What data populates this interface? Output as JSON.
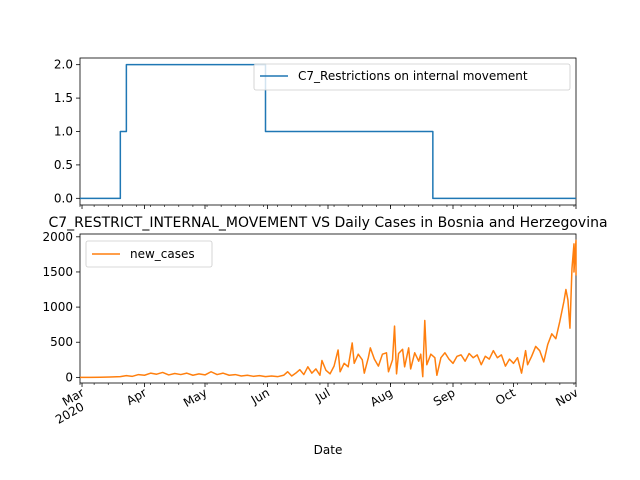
{
  "chart_data": [
    {
      "type": "line",
      "title": "",
      "xlabel": "",
      "ylabel": "",
      "ylim": [
        -0.1,
        2.1
      ],
      "yticks": [
        "0.0",
        "0.5",
        "1.0",
        "1.5",
        "2.0"
      ],
      "ytick_values": [
        0.0,
        0.5,
        1.0,
        1.5,
        2.0
      ],
      "legend_position": "top-right",
      "series": [
        {
          "name": "C7_Restrictions on internal movement",
          "color": "#1f77b4",
          "points": [
            [
              "2020-02-29",
              0
            ],
            [
              "2020-03-20",
              0
            ],
            [
              "2020-03-20",
              1
            ],
            [
              "2020-03-23",
              1
            ],
            [
              "2020-03-23",
              2
            ],
            [
              "2020-05-31",
              2
            ],
            [
              "2020-05-31",
              1
            ],
            [
              "2020-08-22",
              1
            ],
            [
              "2020-08-22",
              0
            ],
            [
              "2020-11-01",
              0
            ]
          ]
        }
      ]
    },
    {
      "type": "line",
      "title": "C7_RESTRICT_INTERNAL_MOVEMENT VS Daily Cases in Bosnia and Herzegovina",
      "xlabel": "Date",
      "ylabel": "",
      "ylim": [
        -80,
        2040
      ],
      "yticks": [
        "0",
        "500",
        "1000",
        "1500",
        "2000"
      ],
      "ytick_values": [
        0,
        500,
        1000,
        1500,
        2000
      ],
      "xtick_labels": [
        {
          "date": "2020-03-01",
          "label": "Mar",
          "sub": "2020"
        },
        {
          "date": "2020-04-01",
          "label": "Apr",
          "sub": ""
        },
        {
          "date": "2020-05-01",
          "label": "May",
          "sub": ""
        },
        {
          "date": "2020-06-01",
          "label": "Jun",
          "sub": ""
        },
        {
          "date": "2020-07-01",
          "label": "Jul",
          "sub": ""
        },
        {
          "date": "2020-08-01",
          "label": "Aug",
          "sub": ""
        },
        {
          "date": "2020-09-01",
          "label": "Sep",
          "sub": ""
        },
        {
          "date": "2020-10-01",
          "label": "Oct",
          "sub": ""
        },
        {
          "date": "2020-11-01",
          "label": "Nov",
          "sub": ""
        }
      ],
      "xlim": [
        "2020-02-29",
        "2020-11-01"
      ],
      "legend_position": "top-left",
      "series": [
        {
          "name": "new_cases",
          "color": "#ff7f0e",
          "points": [
            [
              "2020-02-29",
              0
            ],
            [
              "2020-03-05",
              0
            ],
            [
              "2020-03-10",
              2
            ],
            [
              "2020-03-15",
              5
            ],
            [
              "2020-03-20",
              10
            ],
            [
              "2020-03-23",
              25
            ],
            [
              "2020-03-26",
              15
            ],
            [
              "2020-03-29",
              40
            ],
            [
              "2020-04-01",
              30
            ],
            [
              "2020-04-04",
              60
            ],
            [
              "2020-04-07",
              45
            ],
            [
              "2020-04-10",
              70
            ],
            [
              "2020-04-13",
              35
            ],
            [
              "2020-04-16",
              55
            ],
            [
              "2020-04-19",
              40
            ],
            [
              "2020-04-22",
              60
            ],
            [
              "2020-04-25",
              30
            ],
            [
              "2020-04-28",
              50
            ],
            [
              "2020-05-01",
              35
            ],
            [
              "2020-05-04",
              80
            ],
            [
              "2020-05-07",
              40
            ],
            [
              "2020-05-10",
              60
            ],
            [
              "2020-05-13",
              30
            ],
            [
              "2020-05-16",
              40
            ],
            [
              "2020-05-19",
              20
            ],
            [
              "2020-05-22",
              30
            ],
            [
              "2020-05-25",
              15
            ],
            [
              "2020-05-28",
              25
            ],
            [
              "2020-05-31",
              10
            ],
            [
              "2020-06-03",
              20
            ],
            [
              "2020-06-06",
              10
            ],
            [
              "2020-06-09",
              30
            ],
            [
              "2020-06-11",
              80
            ],
            [
              "2020-06-13",
              20
            ],
            [
              "2020-06-15",
              60
            ],
            [
              "2020-06-17",
              110
            ],
            [
              "2020-06-19",
              40
            ],
            [
              "2020-06-21",
              150
            ],
            [
              "2020-06-23",
              60
            ],
            [
              "2020-06-25",
              120
            ],
            [
              "2020-06-27",
              30
            ],
            [
              "2020-06-28",
              240
            ],
            [
              "2020-06-30",
              100
            ],
            [
              "2020-07-02",
              50
            ],
            [
              "2020-07-04",
              160
            ],
            [
              "2020-07-06",
              390
            ],
            [
              "2020-07-07",
              80
            ],
            [
              "2020-07-09",
              200
            ],
            [
              "2020-07-11",
              150
            ],
            [
              "2020-07-13",
              490
            ],
            [
              "2020-07-14",
              200
            ],
            [
              "2020-07-16",
              330
            ],
            [
              "2020-07-18",
              250
            ],
            [
              "2020-07-19",
              60
            ],
            [
              "2020-07-21",
              280
            ],
            [
              "2020-07-22",
              420
            ],
            [
              "2020-07-24",
              260
            ],
            [
              "2020-07-26",
              160
            ],
            [
              "2020-07-28",
              330
            ],
            [
              "2020-07-30",
              350
            ],
            [
              "2020-07-31",
              80
            ],
            [
              "2020-08-02",
              250
            ],
            [
              "2020-08-03",
              730
            ],
            [
              "2020-08-04",
              50
            ],
            [
              "2020-08-05",
              340
            ],
            [
              "2020-08-07",
              400
            ],
            [
              "2020-08-08",
              150
            ],
            [
              "2020-08-10",
              420
            ],
            [
              "2020-08-11",
              120
            ],
            [
              "2020-08-13",
              350
            ],
            [
              "2020-08-15",
              230
            ],
            [
              "2020-08-16",
              330
            ],
            [
              "2020-08-17",
              10
            ],
            [
              "2020-08-18",
              810
            ],
            [
              "2020-08-19",
              180
            ],
            [
              "2020-08-21",
              330
            ],
            [
              "2020-08-23",
              280
            ],
            [
              "2020-08-24",
              30
            ],
            [
              "2020-08-26",
              280
            ],
            [
              "2020-08-28",
              350
            ],
            [
              "2020-08-30",
              260
            ],
            [
              "2020-09-01",
              200
            ],
            [
              "2020-09-03",
              300
            ],
            [
              "2020-09-05",
              320
            ],
            [
              "2020-09-07",
              230
            ],
            [
              "2020-09-09",
              340
            ],
            [
              "2020-09-11",
              280
            ],
            [
              "2020-09-13",
              320
            ],
            [
              "2020-09-15",
              180
            ],
            [
              "2020-09-17",
              300
            ],
            [
              "2020-09-19",
              260
            ],
            [
              "2020-09-21",
              380
            ],
            [
              "2020-09-23",
              280
            ],
            [
              "2020-09-25",
              320
            ],
            [
              "2020-09-27",
              160
            ],
            [
              "2020-09-29",
              260
            ],
            [
              "2020-10-01",
              200
            ],
            [
              "2020-10-03",
              280
            ],
            [
              "2020-10-05",
              60
            ],
            [
              "2020-10-07",
              380
            ],
            [
              "2020-10-08",
              180
            ],
            [
              "2020-10-10",
              300
            ],
            [
              "2020-10-12",
              440
            ],
            [
              "2020-10-14",
              380
            ],
            [
              "2020-10-16",
              220
            ],
            [
              "2020-10-18",
              470
            ],
            [
              "2020-10-20",
              620
            ],
            [
              "2020-10-22",
              550
            ],
            [
              "2020-10-24",
              800
            ],
            [
              "2020-10-26",
              1080
            ],
            [
              "2020-10-27",
              1250
            ],
            [
              "2020-10-28",
              1100
            ],
            [
              "2020-10-29",
              700
            ],
            [
              "2020-10-30",
              1550
            ],
            [
              "2020-10-31",
              1900
            ],
            [
              "2020-10-31",
              1500
            ],
            [
              "2020-11-01",
              1950
            ],
            [
              "2020-11-01",
              1450
            ]
          ]
        }
      ]
    }
  ]
}
